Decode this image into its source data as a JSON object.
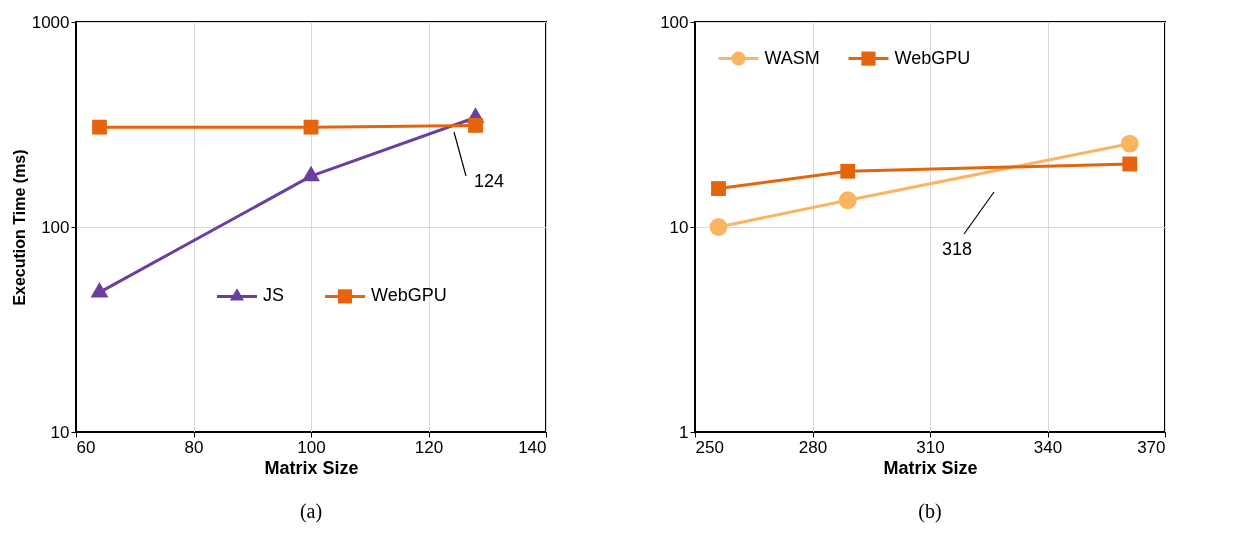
{
  "chart_data": [
    {
      "type": "line",
      "xlabel": "Matrix Size",
      "ylabel": "Execution Time (ms)",
      "x": [
        64,
        100,
        128
      ],
      "xlim": [
        60,
        140
      ],
      "xticks": [
        60,
        80,
        100,
        120,
        140
      ],
      "ylim": [
        10,
        1000
      ],
      "yticks": [
        10,
        100,
        1000
      ],
      "log": true,
      "grid": true,
      "legend": "bottom right",
      "series": [
        {
          "name": "JS",
          "color": "#6a3fa0",
          "marker": "triangle",
          "values": [
            48,
            177,
            342
          ]
        },
        {
          "name": "WebGPU",
          "color": "#e4650c",
          "marker": "square",
          "values": [
            307,
            307,
            313
          ]
        }
      ],
      "annotations": [
        "124",
        "(a)"
      ]
    },
    {
      "type": "line",
      "xlabel": "Matrix Size",
      "x": [
        256,
        289,
        361
      ],
      "xlim": [
        250,
        370
      ],
      "xticks": [
        250,
        280,
        310,
        340,
        370
      ],
      "ylim": [
        1,
        100
      ],
      "yticks": [
        1,
        10,
        100
      ],
      "log": true,
      "grid": true,
      "legend": "top left",
      "series": [
        {
          "name": "WASM",
          "color": "#fbb462",
          "marker": "circle",
          "values": [
            10,
            13.5,
            25.5
          ]
        },
        {
          "name": "WebGPU",
          "color": "#e4650c",
          "marker": "square",
          "values": [
            15.4,
            18.7,
            20.3
          ]
        }
      ],
      "annotations": [
        "318",
        "(b)"
      ]
    }
  ]
}
